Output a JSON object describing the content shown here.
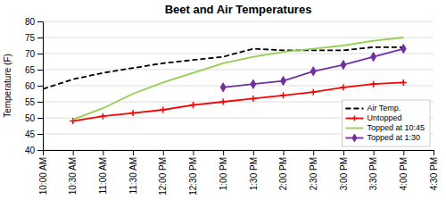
{
  "chart_data": {
    "type": "line",
    "title": "Beet and Air Temperatures",
    "y_label": "Temperature (F)",
    "x": [
      0,
      0.5,
      1.0,
      1.5,
      2.0,
      2.5,
      3.0,
      3.5,
      4.0,
      4.5,
      5.0,
      5.5,
      6.0
    ],
    "xlim": [
      0,
      6.5
    ],
    "xticks": [
      {
        "value": 0,
        "label": "10:00 AM"
      },
      {
        "value": 0.5,
        "label": "10:30 AM"
      },
      {
        "value": 1.0,
        "label": "11:00 AM"
      },
      {
        "value": 1.5,
        "label": "11:30 AM"
      },
      {
        "value": 2.0,
        "label": "12:00 PM"
      },
      {
        "value": 2.5,
        "label": "12:30 PM"
      },
      {
        "value": 3.0,
        "label": "1:00 PM"
      },
      {
        "value": 3.5,
        "label": "1:30 PM"
      },
      {
        "value": 4.0,
        "label": "2:00 PM"
      },
      {
        "value": 4.5,
        "label": "2:30 PM"
      },
      {
        "value": 5.0,
        "label": "3:00 PM"
      },
      {
        "value": 5.5,
        "label": "3:30 PM"
      },
      {
        "value": 6.0,
        "label": "4:00 PM"
      },
      {
        "value": 6.5,
        "label": "4:30 PM"
      }
    ],
    "ylim": [
      40.0,
      80.0
    ],
    "yticks": [
      40,
      45,
      50,
      55,
      60,
      65,
      70,
      75,
      80
    ],
    "grid": "y",
    "legend": "lower right",
    "series": [
      {
        "name": "Air Temp.",
        "color": "#000000",
        "line_style": "dashed",
        "values": [
          59.0,
          62.0,
          64.0,
          65.5,
          67.0,
          68.0,
          69.0,
          71.5,
          71.0,
          71.0,
          71.0,
          72.0,
          72.0
        ]
      },
      {
        "name": "Untopped",
        "color": "#FF0000",
        "marker": "plus",
        "values": [
          null,
          49.0,
          50.5,
          51.5,
          52.5,
          54.0,
          55.0,
          56.0,
          57.0,
          58.0,
          59.5,
          60.5,
          61.0
        ]
      },
      {
        "name": "Topped at 10:45",
        "color": "#92D050",
        "values": [
          null,
          49.5,
          53.0,
          57.5,
          61.0,
          64.0,
          67.0,
          69.0,
          70.5,
          71.5,
          72.5,
          74.0,
          75.0
        ]
      },
      {
        "name": "Topped at 1:30",
        "color": "#7030A0",
        "marker": "diamond",
        "values": [
          null,
          null,
          null,
          null,
          null,
          null,
          59.5,
          60.5,
          61.5,
          64.5,
          66.5,
          69.0,
          71.5
        ]
      }
    ]
  }
}
